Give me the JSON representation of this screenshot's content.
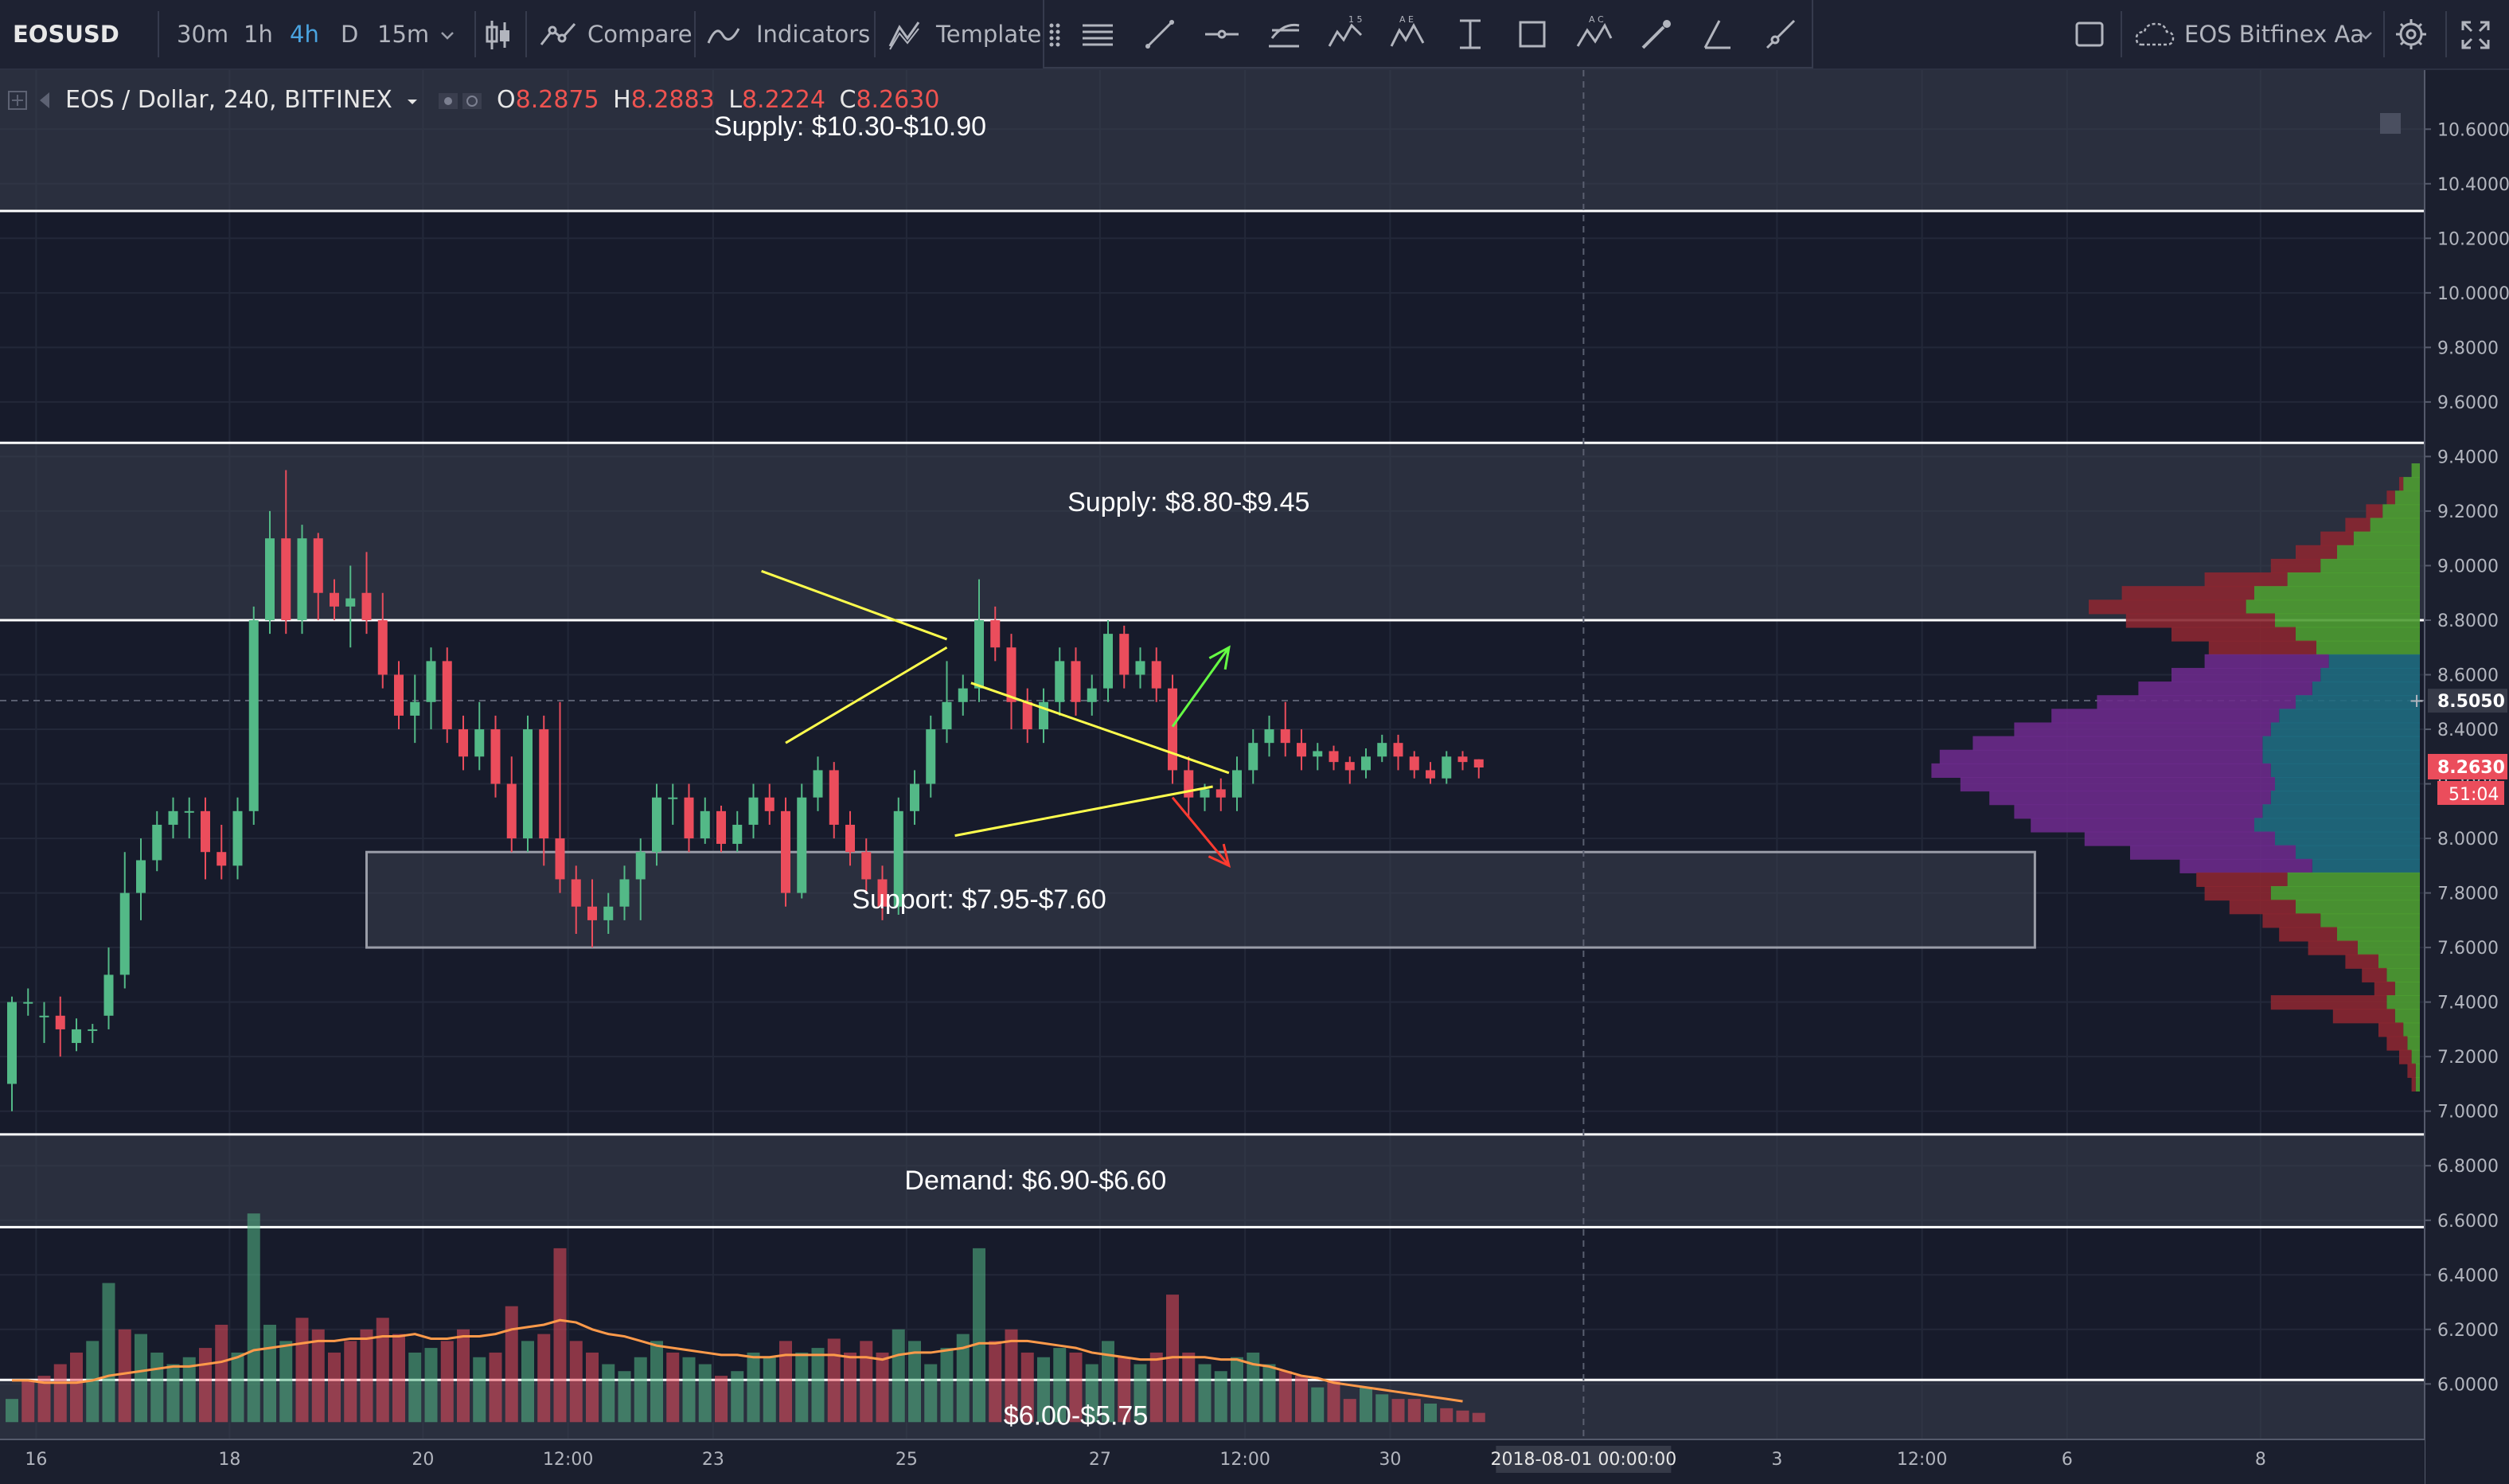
{
  "toolbar": {
    "symbol": "EOSUSD",
    "intervals": [
      "30m",
      "1h",
      "4h",
      "D",
      "15m"
    ],
    "active_interval": "4h",
    "compare_label": "Compare",
    "indicators_label": "Indicators",
    "templates_label": "Templates",
    "layout_name": "EOS Bitfinex Aa"
  },
  "legend": {
    "title": "EOS / Dollar, 240, BITFINEX",
    "open_label": "O",
    "open": "8.2875",
    "high_label": "H",
    "high": "8.2883",
    "low_label": "L",
    "low": "8.2224",
    "close_label": "C",
    "close": "8.2630"
  },
  "colors": {
    "background": "#171b2b",
    "up": "#53b987",
    "down": "#eb4d5c",
    "zone": "#3b3f4e",
    "zone_line": "#ffffff",
    "pattern_line": "#ffff4d",
    "arrow_up": "#66ff44",
    "arrow_down": "#ff3b30",
    "volume_ma": "#ff9a4a",
    "vp_up": "#4e9d32",
    "vp_down": "#8a2731",
    "vp_va_up": "#1f6b80",
    "vp_va_down": "#6a2a8a"
  },
  "icons": [
    "candle-style-icon",
    "compare-icon",
    "indicators-icon",
    "templates-icon",
    "fullscreen-icon",
    "settings-icon",
    "cloud-icon",
    "drag-handle-icon"
  ],
  "chart_data": {
    "type": "candlestick",
    "symbol": "EOSUSD",
    "timeframe": "4h",
    "ylim": [
      5.82,
      10.7
    ],
    "y_ticks": [
      "10.6000",
      "10.4000",
      "10.2000",
      "10.0000",
      "9.8000",
      "9.6000",
      "9.4000",
      "9.2000",
      "9.0000",
      "8.8000",
      "8.6000",
      "8.4000",
      "8.2000",
      "8.0000",
      "7.8000",
      "7.6000",
      "7.4000",
      "7.2000",
      "7.0000",
      "6.8000",
      "6.6000",
      "6.4000",
      "6.2000",
      "6.0000"
    ],
    "x_ticks": [
      {
        "label": "16",
        "i": 1.5
      },
      {
        "label": "18",
        "i": 13.5
      },
      {
        "label": "20",
        "i": 25.5
      },
      {
        "label": "12:00",
        "i": 34.5
      },
      {
        "label": "23",
        "i": 43.5
      },
      {
        "label": "25",
        "i": 55.5
      },
      {
        "label": "27",
        "i": 67.5
      },
      {
        "label": "12:00",
        "i": 76.5
      },
      {
        "label": "30",
        "i": 85.5
      },
      {
        "label": "3",
        "i": 109.5
      },
      {
        "label": "12:00",
        "i": 118.5
      },
      {
        "label": "6",
        "i": 127.5
      },
      {
        "label": "8",
        "i": 139.5
      }
    ],
    "crosshair": {
      "date_label": "2018-08-01 00:00:00",
      "i": 97.5
    },
    "price_labels": {
      "crosshair_price": "8.5050",
      "last_price": "8.2630",
      "countdown": "51:04"
    },
    "crosshair_price": 8.505,
    "last_price": 8.263,
    "candles": [
      [
        7.1,
        7.4,
        7.0,
        7.42
      ],
      [
        7.4,
        7.4,
        7.35,
        7.45
      ],
      [
        7.35,
        7.35,
        7.25,
        7.4
      ],
      [
        7.35,
        7.3,
        7.2,
        7.42
      ],
      [
        7.25,
        7.3,
        7.22,
        7.34
      ],
      [
        7.3,
        7.3,
        7.25,
        7.32
      ],
      [
        7.35,
        7.5,
        7.3,
        7.6
      ],
      [
        7.5,
        7.8,
        7.45,
        7.95
      ],
      [
        7.8,
        7.92,
        7.7,
        8.0
      ],
      [
        7.92,
        8.05,
        7.88,
        8.1
      ],
      [
        8.05,
        8.1,
        8.0,
        8.15
      ],
      [
        8.1,
        8.1,
        8.0,
        8.15
      ],
      [
        8.1,
        7.95,
        7.85,
        8.15
      ],
      [
        7.95,
        7.9,
        7.85,
        8.05
      ],
      [
        7.9,
        8.1,
        7.85,
        8.15
      ],
      [
        8.1,
        8.8,
        8.05,
        8.85
      ],
      [
        8.8,
        9.1,
        8.75,
        9.2
      ],
      [
        9.1,
        8.8,
        8.75,
        9.35
      ],
      [
        8.8,
        9.1,
        8.75,
        9.15
      ],
      [
        9.1,
        8.9,
        8.8,
        9.12
      ],
      [
        8.9,
        8.85,
        8.8,
        8.95
      ],
      [
        8.85,
        8.88,
        8.7,
        9.0
      ],
      [
        8.9,
        8.8,
        8.75,
        9.05
      ],
      [
        8.8,
        8.6,
        8.55,
        8.9
      ],
      [
        8.6,
        8.45,
        8.4,
        8.65
      ],
      [
        8.45,
        8.5,
        8.35,
        8.6
      ],
      [
        8.5,
        8.65,
        8.4,
        8.7
      ],
      [
        8.65,
        8.4,
        8.35,
        8.7
      ],
      [
        8.4,
        8.3,
        8.25,
        8.45
      ],
      [
        8.3,
        8.4,
        8.25,
        8.5
      ],
      [
        8.4,
        8.2,
        8.15,
        8.45
      ],
      [
        8.2,
        8.0,
        7.95,
        8.3
      ],
      [
        8.0,
        8.4,
        7.95,
        8.45
      ],
      [
        8.4,
        8.0,
        7.9,
        8.45
      ],
      [
        8.0,
        7.85,
        7.8,
        8.5
      ],
      [
        7.85,
        7.75,
        7.65,
        7.9
      ],
      [
        7.75,
        7.7,
        7.6,
        7.85
      ],
      [
        7.7,
        7.75,
        7.65,
        7.8
      ],
      [
        7.75,
        7.85,
        7.7,
        7.9
      ],
      [
        7.85,
        7.95,
        7.7,
        8.0
      ],
      [
        7.95,
        8.15,
        7.9,
        8.2
      ],
      [
        8.15,
        8.15,
        8.05,
        8.2
      ],
      [
        8.15,
        8.0,
        7.95,
        8.2
      ],
      [
        8.0,
        8.1,
        7.98,
        8.15
      ],
      [
        8.1,
        7.98,
        7.95,
        8.12
      ],
      [
        7.98,
        8.05,
        7.95,
        8.1
      ],
      [
        8.05,
        8.15,
        8.0,
        8.2
      ],
      [
        8.15,
        8.1,
        8.05,
        8.2
      ],
      [
        8.1,
        7.8,
        7.75,
        8.15
      ],
      [
        7.8,
        8.15,
        7.78,
        8.2
      ],
      [
        8.15,
        8.25,
        8.1,
        8.3
      ],
      [
        8.25,
        8.05,
        8.0,
        8.28
      ],
      [
        8.05,
        7.95,
        7.9,
        8.1
      ],
      [
        7.95,
        7.85,
        7.8,
        8.0
      ],
      [
        7.85,
        7.75,
        7.7,
        7.9
      ],
      [
        7.75,
        8.1,
        7.72,
        8.15
      ],
      [
        8.1,
        8.2,
        8.05,
        8.25
      ],
      [
        8.2,
        8.4,
        8.15,
        8.45
      ],
      [
        8.4,
        8.5,
        8.35,
        8.65
      ],
      [
        8.5,
        8.55,
        8.45,
        8.6
      ],
      [
        8.55,
        8.8,
        8.5,
        8.95
      ],
      [
        8.8,
        8.7,
        8.65,
        8.85
      ],
      [
        8.7,
        8.5,
        8.4,
        8.75
      ],
      [
        8.5,
        8.4,
        8.35,
        8.55
      ],
      [
        8.4,
        8.5,
        8.35,
        8.55
      ],
      [
        8.5,
        8.65,
        8.45,
        8.7
      ],
      [
        8.65,
        8.5,
        8.45,
        8.7
      ],
      [
        8.5,
        8.55,
        8.45,
        8.6
      ],
      [
        8.55,
        8.75,
        8.5,
        8.8
      ],
      [
        8.75,
        8.6,
        8.55,
        8.78
      ],
      [
        8.6,
        8.65,
        8.55,
        8.7
      ],
      [
        8.65,
        8.55,
        8.5,
        8.7
      ],
      [
        8.55,
        8.25,
        8.2,
        8.6
      ],
      [
        8.25,
        8.15,
        8.08,
        8.3
      ],
      [
        8.15,
        8.18,
        8.1,
        8.2
      ],
      [
        8.18,
        8.15,
        8.1,
        8.22
      ],
      [
        8.15,
        8.25,
        8.1,
        8.3
      ],
      [
        8.25,
        8.35,
        8.2,
        8.4
      ],
      [
        8.35,
        8.4,
        8.3,
        8.45
      ],
      [
        8.4,
        8.35,
        8.3,
        8.5
      ],
      [
        8.35,
        8.3,
        8.25,
        8.4
      ],
      [
        8.3,
        8.32,
        8.25,
        8.35
      ],
      [
        8.32,
        8.28,
        8.25,
        8.34
      ],
      [
        8.28,
        8.25,
        8.2,
        8.3
      ],
      [
        8.25,
        8.3,
        8.22,
        8.33
      ],
      [
        8.3,
        8.35,
        8.28,
        8.38
      ],
      [
        8.35,
        8.3,
        8.25,
        8.38
      ],
      [
        8.3,
        8.25,
        8.22,
        8.32
      ],
      [
        8.25,
        8.22,
        8.2,
        8.28
      ],
      [
        8.22,
        8.3,
        8.2,
        8.32
      ],
      [
        8.3,
        8.28,
        8.25,
        8.32
      ],
      [
        8.29,
        8.26,
        8.22,
        8.29
      ]
    ],
    "volume_axis": {
      "baseline_price": 5.86,
      "scale_price_per_unit": 0.85
    },
    "volume": [
      [
        0.1,
        1
      ],
      [
        0.18,
        0
      ],
      [
        0.2,
        0
      ],
      [
        0.25,
        0
      ],
      [
        0.3,
        0
      ],
      [
        0.35,
        1
      ],
      [
        0.6,
        1
      ],
      [
        0.4,
        0
      ],
      [
        0.38,
        1
      ],
      [
        0.3,
        1
      ],
      [
        0.25,
        1
      ],
      [
        0.28,
        1
      ],
      [
        0.32,
        0
      ],
      [
        0.42,
        0
      ],
      [
        0.3,
        1
      ],
      [
        0.9,
        1
      ],
      [
        0.42,
        1
      ],
      [
        0.35,
        1
      ],
      [
        0.45,
        0
      ],
      [
        0.4,
        0
      ],
      [
        0.3,
        0
      ],
      [
        0.35,
        0
      ],
      [
        0.4,
        0
      ],
      [
        0.45,
        0
      ],
      [
        0.38,
        0
      ],
      [
        0.3,
        1
      ],
      [
        0.32,
        1
      ],
      [
        0.35,
        0
      ],
      [
        0.4,
        0
      ],
      [
        0.28,
        1
      ],
      [
        0.3,
        0
      ],
      [
        0.5,
        0
      ],
      [
        0.35,
        1
      ],
      [
        0.38,
        0
      ],
      [
        0.75,
        0
      ],
      [
        0.35,
        0
      ],
      [
        0.3,
        0
      ],
      [
        0.25,
        1
      ],
      [
        0.22,
        1
      ],
      [
        0.28,
        1
      ],
      [
        0.35,
        1
      ],
      [
        0.3,
        0
      ],
      [
        0.28,
        1
      ],
      [
        0.25,
        1
      ],
      [
        0.2,
        0
      ],
      [
        0.22,
        1
      ],
      [
        0.3,
        1
      ],
      [
        0.28,
        1
      ],
      [
        0.35,
        0
      ],
      [
        0.3,
        1
      ],
      [
        0.32,
        1
      ],
      [
        0.36,
        0
      ],
      [
        0.3,
        0
      ],
      [
        0.35,
        0
      ],
      [
        0.3,
        0
      ],
      [
        0.4,
        1
      ],
      [
        0.35,
        1
      ],
      [
        0.25,
        1
      ],
      [
        0.32,
        1
      ],
      [
        0.38,
        1
      ],
      [
        0.75,
        1
      ],
      [
        0.35,
        0
      ],
      [
        0.4,
        0
      ],
      [
        0.3,
        0
      ],
      [
        0.28,
        1
      ],
      [
        0.32,
        1
      ],
      [
        0.3,
        0
      ],
      [
        0.25,
        1
      ],
      [
        0.35,
        1
      ],
      [
        0.28,
        0
      ],
      [
        0.25,
        1
      ],
      [
        0.3,
        0
      ],
      [
        0.55,
        0
      ],
      [
        0.3,
        0
      ],
      [
        0.25,
        1
      ],
      [
        0.22,
        1
      ],
      [
        0.28,
        1
      ],
      [
        0.3,
        1
      ],
      [
        0.25,
        1
      ],
      [
        0.22,
        0
      ],
      [
        0.2,
        0
      ],
      [
        0.15,
        1
      ],
      [
        0.18,
        0
      ],
      [
        0.1,
        0
      ],
      [
        0.15,
        1
      ],
      [
        0.12,
        1
      ],
      [
        0.1,
        0
      ],
      [
        0.1,
        0
      ],
      [
        0.08,
        1
      ],
      [
        0.06,
        0
      ],
      [
        0.05,
        0
      ],
      [
        0.04,
        0
      ]
    ],
    "volume_ma": [
      0.18,
      0.18,
      0.17,
      0.17,
      0.17,
      0.18,
      0.2,
      0.21,
      0.22,
      0.23,
      0.24,
      0.24,
      0.25,
      0.26,
      0.28,
      0.31,
      0.32,
      0.33,
      0.34,
      0.35,
      0.35,
      0.36,
      0.36,
      0.37,
      0.37,
      0.38,
      0.36,
      0.36,
      0.37,
      0.37,
      0.38,
      0.4,
      0.41,
      0.42,
      0.44,
      0.43,
      0.4,
      0.38,
      0.37,
      0.35,
      0.33,
      0.32,
      0.31,
      0.3,
      0.29,
      0.29,
      0.28,
      0.28,
      0.29,
      0.29,
      0.29,
      0.29,
      0.28,
      0.28,
      0.27,
      0.29,
      0.3,
      0.3,
      0.31,
      0.32,
      0.34,
      0.34,
      0.35,
      0.35,
      0.34,
      0.33,
      0.32,
      0.3,
      0.29,
      0.28,
      0.27,
      0.27,
      0.28,
      0.28,
      0.28,
      0.27,
      0.27,
      0.25,
      0.24,
      0.22,
      0.2,
      0.19,
      0.17,
      0.16,
      0.15,
      0.14,
      0.13,
      0.12,
      0.11,
      0.1,
      0.09
    ],
    "volume_profile": {
      "value_area": [
        7.9,
        8.65
      ],
      "rows": [
        [
          9.35,
          0.2,
          0
        ],
        [
          9.3,
          0.4,
          0.1
        ],
        [
          9.25,
          0.6,
          0.2
        ],
        [
          9.2,
          0.9,
          0.4
        ],
        [
          9.15,
          1.2,
          0.6
        ],
        [
          9.1,
          1.6,
          0.8
        ],
        [
          9.05,
          2.0,
          1.0
        ],
        [
          9.0,
          2.4,
          1.2
        ],
        [
          8.95,
          3.2,
          2.0
        ],
        [
          8.9,
          4.0,
          3.2
        ],
        [
          8.85,
          4.2,
          3.8
        ],
        [
          8.8,
          3.5,
          3.6
        ],
        [
          8.75,
          3.0,
          3.0
        ],
        [
          8.7,
          2.5,
          2.6
        ],
        [
          8.65,
          2.2,
          3.0
        ],
        [
          8.6,
          2.4,
          3.6
        ],
        [
          8.55,
          2.6,
          4.2
        ],
        [
          8.5,
          3.0,
          4.8
        ],
        [
          8.45,
          3.4,
          5.5
        ],
        [
          8.4,
          3.6,
          6.2
        ],
        [
          8.35,
          3.8,
          7.0
        ],
        [
          8.3,
          3.8,
          7.8
        ],
        [
          8.25,
          3.6,
          8.2
        ],
        [
          8.2,
          3.5,
          7.6
        ],
        [
          8.15,
          3.6,
          6.8
        ],
        [
          8.1,
          3.8,
          6.0
        ],
        [
          8.05,
          4.0,
          5.4
        ],
        [
          8.0,
          3.5,
          4.6
        ],
        [
          7.95,
          3.0,
          4.0
        ],
        [
          7.9,
          2.6,
          3.2
        ],
        [
          7.85,
          3.2,
          2.2
        ],
        [
          7.8,
          3.6,
          1.6
        ],
        [
          7.75,
          3.0,
          1.6
        ],
        [
          7.7,
          2.4,
          1.4
        ],
        [
          7.65,
          2.0,
          1.4
        ],
        [
          7.6,
          1.5,
          1.2
        ],
        [
          7.55,
          1.0,
          0.8
        ],
        [
          7.5,
          0.8,
          0.6
        ],
        [
          7.45,
          0.6,
          0.5
        ],
        [
          7.4,
          0.8,
          2.8
        ],
        [
          7.35,
          0.6,
          1.5
        ],
        [
          7.3,
          0.4,
          0.6
        ],
        [
          7.25,
          0.3,
          0.5
        ],
        [
          7.2,
          0.2,
          0.3
        ],
        [
          7.15,
          0.1,
          0.2
        ],
        [
          7.1,
          0.1,
          0.1
        ]
      ]
    },
    "zones": [
      {
        "label": "Supply: $10.30-$10.90",
        "low": 10.3,
        "high": 10.9,
        "label_i": 52
      },
      {
        "label": "Supply: $8.80-$9.45",
        "low": 8.8,
        "high": 9.45,
        "label_i": 73
      },
      {
        "label": "Support: $7.95-$7.60",
        "low": 7.6,
        "high": 7.95,
        "label_i": 60,
        "start_i": 22,
        "end_i": 125.5
      },
      {
        "label": "Demand: $6.90-$6.60",
        "low": 6.575,
        "high": 6.915,
        "label_i": 63.5
      },
      {
        "label": "$6.00-$5.75",
        "low": 5.75,
        "high": 6.015,
        "label_i": 66
      }
    ],
    "pattern_lines": [
      {
        "name": "flag-upper",
        "x1": 46.5,
        "y1": 8.98,
        "x2": 58,
        "y2": 8.73
      },
      {
        "name": "flag-lower",
        "x1": 48,
        "y1": 8.35,
        "x2": 58,
        "y2": 8.7
      },
      {
        "name": "triangle-upper",
        "x1": 59.5,
        "y1": 8.57,
        "x2": 75.5,
        "y2": 8.24
      },
      {
        "name": "triangle-lower",
        "x1": 58.5,
        "y1": 8.01,
        "x2": 74.5,
        "y2": 8.19
      }
    ],
    "arrows": [
      {
        "direction": "up",
        "x1": 72,
        "y1": 8.41,
        "x2": 75.5,
        "y2": 8.7
      },
      {
        "direction": "down",
        "x1": 72,
        "y1": 8.15,
        "x2": 75.5,
        "y2": 7.9
      }
    ]
  }
}
